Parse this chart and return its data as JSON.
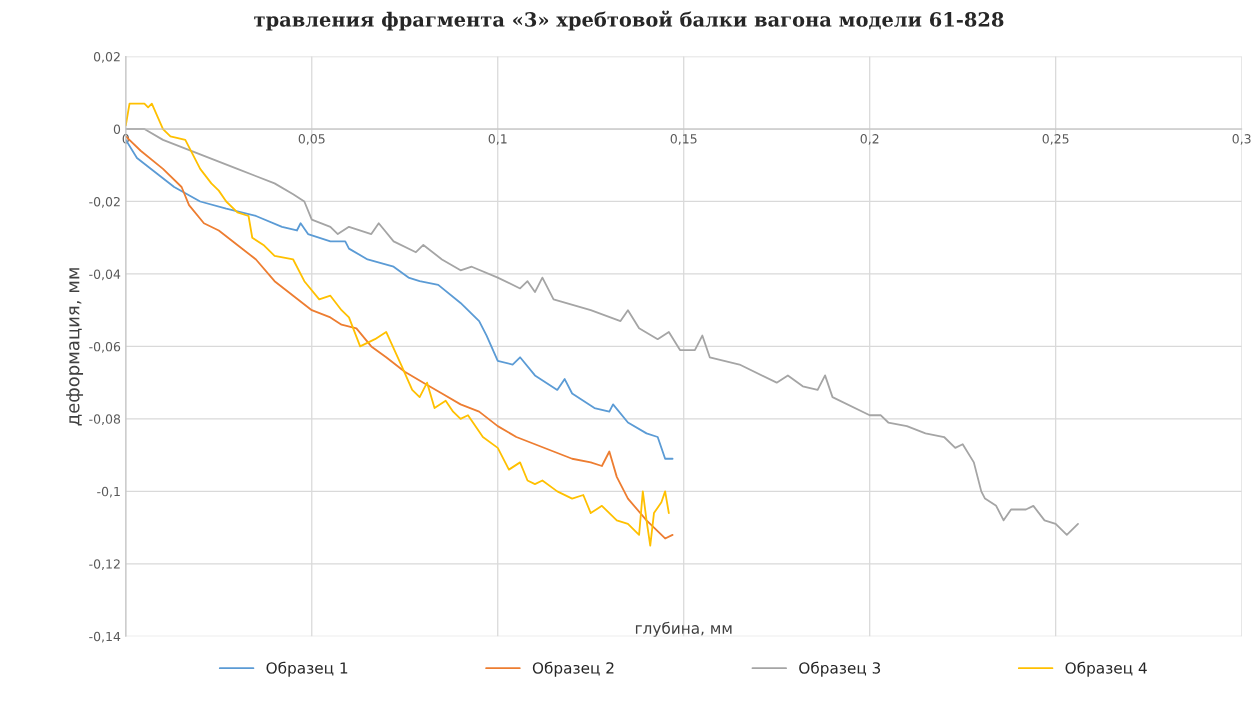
{
  "chart_data": {
    "type": "line",
    "title": "травления фрагмента «3» хребтовой балки вагона модели 61-828",
    "xlabel": "глубина, мм",
    "ylabel": "деформация, мм",
    "xlim": [
      0,
      0.3
    ],
    "xticks": [
      {
        "value": 0,
        "label": "0"
      },
      {
        "value": 0.05,
        "label": "0,05"
      },
      {
        "value": 0.1,
        "label": "0,1"
      },
      {
        "value": 0.15,
        "label": "0,15"
      },
      {
        "value": 0.2,
        "label": "0,2"
      },
      {
        "value": 0.25,
        "label": "0,25"
      },
      {
        "value": 0.3,
        "label": "0,3"
      }
    ],
    "ylim": [
      -0.14,
      0.02
    ],
    "yticks": [
      {
        "value": 0.02,
        "label": "0,02"
      },
      {
        "value": 0,
        "label": "0"
      },
      {
        "value": -0.02,
        "label": "-0,02"
      },
      {
        "value": -0.04,
        "label": "-0,04"
      },
      {
        "value": -0.06,
        "label": "-0,06"
      },
      {
        "value": -0.08,
        "label": "-0,08"
      },
      {
        "value": -0.1,
        "label": "-0,1"
      },
      {
        "value": -0.12,
        "label": "-0,12"
      },
      {
        "value": -0.14,
        "label": "-0,14"
      }
    ],
    "grid": true,
    "legend": "bottom",
    "marker": "none",
    "line_style": "solid",
    "series": [
      {
        "name": "Образец 1",
        "color": "#5b9bd5",
        "x": [
          0,
          0.003,
          0.008,
          0.013,
          0.02,
          0.027,
          0.035,
          0.042,
          0.046,
          0.047,
          0.049,
          0.055,
          0.059,
          0.06,
          0.065,
          0.072,
          0.076,
          0.079,
          0.084,
          0.09,
          0.095,
          0.097,
          0.1,
          0.104,
          0.106,
          0.11,
          0.116,
          0.118,
          0.12,
          0.126,
          0.13,
          0.131,
          0.135,
          0.14,
          0.143,
          0.145,
          0.147
        ],
        "values": [
          -0.003,
          -0.008,
          -0.012,
          -0.016,
          -0.02,
          -0.022,
          -0.024,
          -0.027,
          -0.028,
          -0.026,
          -0.029,
          -0.031,
          -0.031,
          -0.033,
          -0.036,
          -0.038,
          -0.041,
          -0.042,
          -0.043,
          -0.048,
          -0.053,
          -0.057,
          -0.064,
          -0.065,
          -0.063,
          -0.068,
          -0.072,
          -0.069,
          -0.073,
          -0.077,
          -0.078,
          -0.076,
          -0.081,
          -0.084,
          -0.085,
          -0.091,
          -0.091
        ]
      },
      {
        "name": "Образец 2",
        "color": "#ed7d31",
        "x": [
          0,
          0.004,
          0.01,
          0.015,
          0.017,
          0.021,
          0.025,
          0.03,
          0.035,
          0.04,
          0.045,
          0.05,
          0.055,
          0.058,
          0.062,
          0.066,
          0.07,
          0.075,
          0.08,
          0.085,
          0.09,
          0.095,
          0.1,
          0.105,
          0.11,
          0.115,
          0.12,
          0.125,
          0.128,
          0.13,
          0.132,
          0.135,
          0.14,
          0.145,
          0.147
        ],
        "values": [
          -0.002,
          -0.006,
          -0.011,
          -0.016,
          -0.021,
          -0.026,
          -0.028,
          -0.032,
          -0.036,
          -0.042,
          -0.046,
          -0.05,
          -0.052,
          -0.054,
          -0.055,
          -0.06,
          -0.063,
          -0.067,
          -0.07,
          -0.073,
          -0.076,
          -0.078,
          -0.082,
          -0.085,
          -0.087,
          -0.089,
          -0.091,
          -0.092,
          -0.093,
          -0.089,
          -0.096,
          -0.102,
          -0.108,
          -0.113,
          -0.112
        ]
      },
      {
        "name": "Образец 3",
        "color": "#a5a5a5",
        "x": [
          0,
          0.005,
          0.01,
          0.02,
          0.03,
          0.04,
          0.045,
          0.048,
          0.05,
          0.055,
          0.057,
          0.06,
          0.066,
          0.068,
          0.072,
          0.078,
          0.08,
          0.085,
          0.09,
          0.093,
          0.1,
          0.106,
          0.108,
          0.11,
          0.112,
          0.115,
          0.125,
          0.133,
          0.135,
          0.138,
          0.143,
          0.146,
          0.149,
          0.153,
          0.155,
          0.157,
          0.165,
          0.175,
          0.178,
          0.182,
          0.186,
          0.188,
          0.19,
          0.2,
          0.203,
          0.205,
          0.21,
          0.215,
          0.22,
          0.223,
          0.225,
          0.228,
          0.23,
          0.231,
          0.234,
          0.236,
          0.238,
          0.242,
          0.244,
          0.247,
          0.25,
          0.253,
          0.256
        ],
        "values": [
          0,
          0,
          -0.003,
          -0.007,
          -0.011,
          -0.015,
          -0.018,
          -0.02,
          -0.025,
          -0.027,
          -0.029,
          -0.027,
          -0.029,
          -0.026,
          -0.031,
          -0.034,
          -0.032,
          -0.036,
          -0.039,
          -0.038,
          -0.041,
          -0.044,
          -0.042,
          -0.045,
          -0.041,
          -0.047,
          -0.05,
          -0.053,
          -0.05,
          -0.055,
          -0.058,
          -0.056,
          -0.061,
          -0.061,
          -0.057,
          -0.063,
          -0.065,
          -0.07,
          -0.068,
          -0.071,
          -0.072,
          -0.068,
          -0.074,
          -0.079,
          -0.079,
          -0.081,
          -0.082,
          -0.084,
          -0.085,
          -0.088,
          -0.087,
          -0.092,
          -0.1,
          -0.102,
          -0.104,
          -0.108,
          -0.105,
          -0.105,
          -0.104,
          -0.108,
          -0.109,
          -0.112,
          -0.109
        ]
      },
      {
        "name": "Образец 4",
        "color": "#ffc000",
        "x": [
          0,
          0.001,
          0.005,
          0.006,
          0.007,
          0.01,
          0.012,
          0.016,
          0.02,
          0.023,
          0.025,
          0.027,
          0.03,
          0.033,
          0.034,
          0.037,
          0.04,
          0.045,
          0.048,
          0.052,
          0.055,
          0.058,
          0.06,
          0.063,
          0.067,
          0.07,
          0.074,
          0.077,
          0.079,
          0.081,
          0.083,
          0.086,
          0.088,
          0.09,
          0.092,
          0.096,
          0.1,
          0.103,
          0.106,
          0.108,
          0.11,
          0.112,
          0.116,
          0.12,
          0.123,
          0.125,
          0.128,
          0.132,
          0.135,
          0.138,
          0.139,
          0.14,
          0.141,
          0.142,
          0.144,
          0.145,
          0.146
        ],
        "values": [
          0.001,
          0.007,
          0.007,
          0.006,
          0.007,
          0.0,
          -0.002,
          -0.003,
          -0.011,
          -0.015,
          -0.017,
          -0.02,
          -0.023,
          -0.024,
          -0.03,
          -0.032,
          -0.035,
          -0.036,
          -0.042,
          -0.047,
          -0.046,
          -0.05,
          -0.052,
          -0.06,
          -0.058,
          -0.056,
          -0.065,
          -0.072,
          -0.074,
          -0.07,
          -0.077,
          -0.075,
          -0.078,
          -0.08,
          -0.079,
          -0.085,
          -0.088,
          -0.094,
          -0.092,
          -0.097,
          -0.098,
          -0.097,
          -0.1,
          -0.102,
          -0.101,
          -0.106,
          -0.104,
          -0.108,
          -0.109,
          -0.112,
          -0.1,
          -0.108,
          -0.115,
          -0.106,
          -0.103,
          -0.1,
          -0.106
        ]
      }
    ]
  }
}
